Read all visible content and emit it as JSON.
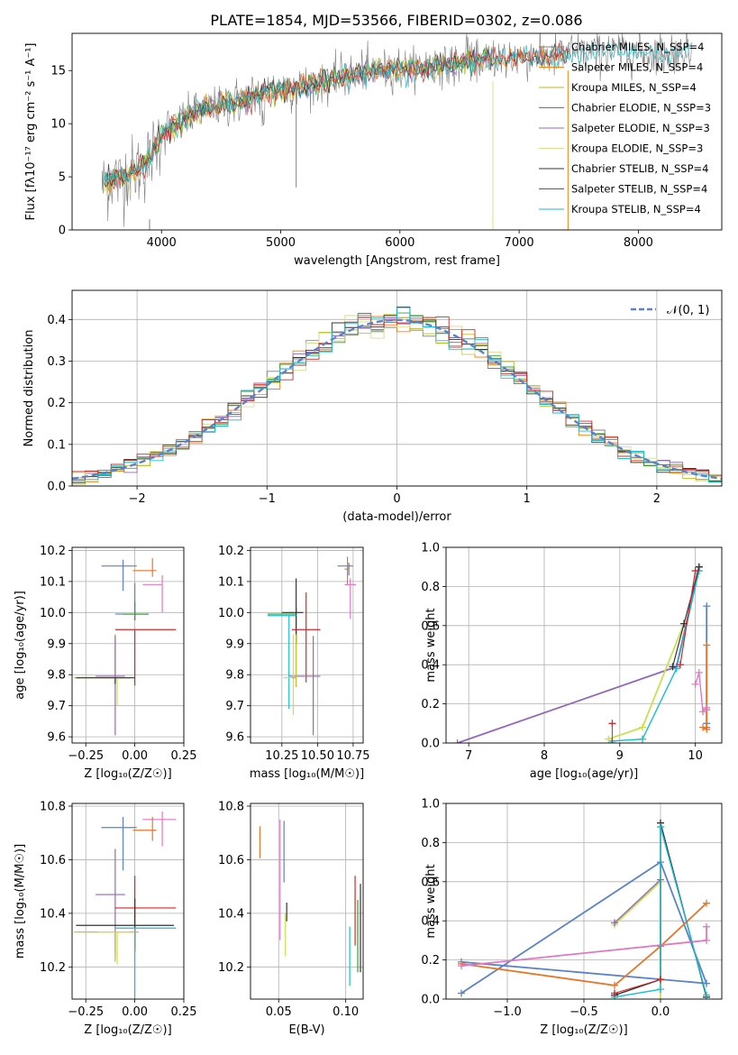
{
  "figure": {
    "title": "PLATE=1854, MJD=53566, FIBERID=0302, z=0.086"
  },
  "colors": {
    "c_miles": "#7f7f7f",
    "s_miles": "#ff7f0e",
    "k_miles": "#bcbd22",
    "c_elodie": "#2ca02c",
    "s_elodie": "#9467bd",
    "k_elodie": "#dbdb8d",
    "c_stelib": "#333333",
    "s_stelib": "#d62728",
    "k_stelib": "#17becf",
    "blue": "#5a82cc",
    "orange": "#e8762a",
    "pink": "#e377c2",
    "olive": "#c9e04f"
  },
  "chart_data": [
    {
      "id": "spectrum",
      "type": "line",
      "title": "PLATE=1854, MJD=53566, FIBERID=0302, z=0.086",
      "xlabel": "wavelength [Angstrom, rest frame]",
      "ylabel": "Flux [fλ10⁻¹⁷ erg cm⁻² s⁻¹ A⁻¹]",
      "xlim": [
        3250,
        8700
      ],
      "ylim": [
        0,
        18.5
      ],
      "xticks": [
        4000,
        5000,
        6000,
        7000,
        8000
      ],
      "yticks": [
        0,
        5,
        10,
        15
      ],
      "grid": false,
      "legend_position": "right",
      "legend": [
        "Chabrier MILES, N_SSP=4",
        "Salpeter MILES, N_SSP=4",
        "Kroupa MILES, N_SSP=4",
        "Chabrier ELODIE, N_SSP=3",
        "Salpeter ELODIE, N_SSP=3",
        "Kroupa ELODIE, N_SSP=3",
        "Chabrier STELIB, N_SSP=4",
        "Salpeter STELIB, N_SSP=4",
        "Kroupa STELIB, N_SSP=4"
      ],
      "continuum": {
        "x": [
          3500,
          3700,
          3900,
          4000,
          4300,
          4600,
          4900,
          5200,
          5500,
          5800,
          6100,
          6400,
          6700,
          7000,
          7400,
          7800,
          8200,
          8500
        ],
        "y": [
          4.5,
          5,
          6.5,
          9,
          11.2,
          12,
          13,
          13.6,
          14.3,
          15.0,
          15.2,
          15.5,
          16,
          16.2,
          16.5,
          16.8,
          16.6,
          17
        ]
      }
    },
    {
      "id": "residuals",
      "type": "step",
      "xlabel": "(data-model)/error",
      "ylabel": "Normed distribution",
      "xlim": [
        -2.5,
        2.5
      ],
      "ylim": [
        0,
        0.47
      ],
      "xticks": [
        -2,
        -1,
        0,
        1,
        2
      ],
      "yticks": [
        0.0,
        0.1,
        0.2,
        0.3,
        0.4
      ],
      "grid": true,
      "legend": [
        "𝒩(0, 1)"
      ],
      "legend_position": "upper right",
      "bin_width": 0.1
    },
    {
      "id": "age_vs_Z",
      "type": "errorbar",
      "xlabel": "Z [log₁₀(Z/Z☉)]",
      "ylabel": "age  [log₁₀(age/yr)]",
      "xlim": [
        -0.32,
        0.25
      ],
      "ylim": [
        9.58,
        10.21
      ],
      "xticks": [
        -0.25,
        0.0,
        0.25
      ],
      "yticks": [
        9.6,
        9.7,
        9.8,
        9.9,
        10.0,
        10.1,
        10.2
      ],
      "grid": true,
      "points": [
        {
          "c": "blue",
          "x": -0.06,
          "xerr": [
            0.11,
            0.07
          ],
          "y": 10.15,
          "yerr": [
            0.08,
            0.02
          ]
        },
        {
          "c": "orange",
          "x": 0.09,
          "xerr": [
            0.1,
            0.02
          ],
          "y": 10.135,
          "yerr": [
            0.02,
            0.04
          ]
        },
        {
          "c": "pink",
          "x": 0.14,
          "xerr": [
            0.1,
            0.0
          ],
          "y": 10.09,
          "yerr": [
            0.09,
            0.03
          ]
        },
        {
          "c": "blue",
          "x": 0.0,
          "xerr": [
            0.1,
            0.07
          ],
          "y": 9.995,
          "yerr": [
            0.02,
            0.1
          ]
        },
        {
          "c": "c_elodie",
          "x": 0.0,
          "xerr": [
            0.06,
            0.07
          ],
          "y": 9.995,
          "yerr": [
            0.02,
            0.04
          ]
        },
        {
          "c": "s_stelib",
          "x": 0.0,
          "xerr": [
            0.1,
            0.21
          ],
          "y": 9.945,
          "yerr": [
            0.18,
            0.0
          ]
        },
        {
          "c": "k_miles",
          "x": -0.1,
          "xerr": [
            0.21,
            0.08
          ],
          "y": 9.79,
          "yerr": [
            0.0,
            0.14
          ]
        },
        {
          "c": "s_elodie",
          "x": -0.1,
          "xerr": [
            0.1,
            0.05
          ],
          "y": 9.795,
          "yerr": [
            0.19,
            0.13
          ]
        },
        {
          "c": "olive",
          "x": -0.09,
          "xerr": [
            0.12,
            0.06
          ],
          "y": 9.79,
          "yerr": [
            0.09,
            0.0
          ]
        },
        {
          "c": "c_stelib",
          "x": -0.1,
          "xerr": [
            0.2,
            0.1
          ],
          "y": 9.79,
          "yerr": [
            0.02,
            0.0
          ]
        }
      ]
    },
    {
      "id": "age_vs_mass",
      "type": "errorbar",
      "xlabel": "mass [log₁₀(M/M☉)]",
      "xlim": [
        10.03,
        10.82
      ],
      "ylim": [
        9.58,
        10.21
      ],
      "xticks": [
        10.25,
        10.5,
        10.75
      ],
      "yticks": [
        9.6,
        9.7,
        9.8,
        9.9,
        10.0,
        10.1,
        10.2
      ],
      "grid": true,
      "points": [
        {
          "c": "blue",
          "x": 10.72,
          "xerr": [
            0.08,
            0.03
          ],
          "y": 10.15,
          "yerr": [
            0.03,
            0.01
          ]
        },
        {
          "c": "orange",
          "x": 10.71,
          "xerr": [
            0.02,
            0.01
          ],
          "y": 10.14,
          "yerr": [
            0.05,
            0.04
          ]
        },
        {
          "c": "pink",
          "x": 10.73,
          "xerr": [
            0.04,
            0.04
          ],
          "y": 10.09,
          "yerr": [
            0.11,
            0.02
          ]
        },
        {
          "c": "c_elodie",
          "x": 10.35,
          "xerr": [
            0.2,
            0.0
          ],
          "y": 9.995,
          "yerr": [
            0.09,
            0.02
          ]
        },
        {
          "c": "c_stelib",
          "x": 10.35,
          "xerr": [
            0.1,
            0.05
          ],
          "y": 10.0,
          "yerr": [
            0.1,
            0.11
          ]
        },
        {
          "c": "k_stelib",
          "x": 10.3,
          "xerr": [
            0.15,
            0.05
          ],
          "y": 9.99,
          "yerr": [
            0.3,
            0.0
          ]
        },
        {
          "c": "s_stelib",
          "x": 10.42,
          "xerr": [
            0.1,
            0.1
          ],
          "y": 9.945,
          "yerr": [
            0.17,
            0.12
          ]
        },
        {
          "c": "s_elodie",
          "x": 10.47,
          "xerr": [
            0.17,
            0.05
          ],
          "y": 9.795,
          "yerr": [
            0.19,
            0.13
          ]
        },
        {
          "c": "olive",
          "x": 10.33,
          "xerr": [
            0.07,
            0.0
          ],
          "y": 9.79,
          "yerr": [
            0.12,
            0.14
          ]
        },
        {
          "c": "k_miles",
          "x": 10.35,
          "xerr": [
            0.03,
            0.0
          ],
          "y": 9.79,
          "yerr": [
            0.03,
            0.14
          ]
        }
      ]
    },
    {
      "id": "weight_vs_age",
      "type": "line",
      "xlabel": "age  [log₁₀(age/yr)]",
      "ylabel": "mass weight",
      "xlim": [
        6.7,
        10.35
      ],
      "ylim": [
        0.0,
        1.0
      ],
      "xticks": [
        7,
        8,
        9,
        10
      ],
      "yticks": [
        0.0,
        0.2,
        0.4,
        0.6,
        0.8,
        1.0
      ],
      "grid": true,
      "series": [
        {
          "c": "s_elodie",
          "x": [
            6.85,
            9.75,
            10.05
          ],
          "y": [
            0.0,
            0.39,
            0.9
          ],
          "lw": 1.8
        },
        {
          "c": "blue",
          "x": [
            10.15,
            10.15,
            10.15
          ],
          "y": [
            0.7,
            0.1,
            0.08
          ],
          "lw": 1.8
        },
        {
          "c": "orange",
          "x": [
            10.15,
            10.15,
            10.15,
            10.1
          ],
          "y": [
            0.5,
            0.17,
            0.07,
            0.08
          ],
          "lw": 1.8
        },
        {
          "c": "pink",
          "x": [
            10.0,
            10.05,
            10.1,
            10.15
          ],
          "y": [
            0.3,
            0.36,
            0.16,
            0.18
          ],
          "lw": 1.4
        },
        {
          "c": "k_stelib",
          "x": [
            8.9,
            9.3,
            9.75,
            10.05
          ],
          "y": [
            0.01,
            0.02,
            0.38,
            0.88
          ],
          "lw": 1.4
        },
        {
          "c": "olive",
          "x": [
            8.85,
            9.3,
            9.85
          ],
          "y": [
            0.02,
            0.08,
            0.61
          ],
          "lw": 1.8
        },
        {
          "c": "c_stelib",
          "x": [
            9.7,
            9.85,
            10.05
          ],
          "y": [
            0.39,
            0.61,
            0.9
          ],
          "lw": 1.2
        },
        {
          "c": "s_stelib",
          "x": [
            9.8,
            10.0
          ],
          "y": [
            0.4,
            0.88
          ],
          "lw": 1.2
        },
        {
          "c": "s_stelib",
          "x": [
            8.9,
            8.9
          ],
          "y": [
            0.1,
            0.0
          ],
          "lw": 1.0
        }
      ]
    },
    {
      "id": "mass_vs_Z",
      "type": "errorbar",
      "xlabel": "Z [log₁₀(Z/Z☉)]",
      "ylabel": "mass [log₁₀(M/M☉)]",
      "xlim": [
        -0.32,
        0.25
      ],
      "ylim": [
        10.08,
        10.81
      ],
      "xticks": [
        -0.25,
        0.0,
        0.25
      ],
      "yticks": [
        10.2,
        10.4,
        10.6,
        10.8
      ],
      "grid": true,
      "points": [
        {
          "c": "pink",
          "x": 0.14,
          "xerr": [
            0.1,
            0.07
          ],
          "y": 10.75,
          "yerr": [
            0.1,
            0.03
          ]
        },
        {
          "c": "blue",
          "x": -0.06,
          "xerr": [
            0.11,
            0.07
          ],
          "y": 10.72,
          "yerr": [
            0.16,
            0.04
          ]
        },
        {
          "c": "orange",
          "x": 0.09,
          "xerr": [
            0.1,
            0.02
          ],
          "y": 10.71,
          "yerr": [
            0.04,
            0.05
          ]
        },
        {
          "c": "s_elodie",
          "x": -0.1,
          "xerr": [
            0.1,
            0.05
          ],
          "y": 10.47,
          "yerr": [
            0.22,
            0.17
          ]
        },
        {
          "c": "s_stelib",
          "x": 0.0,
          "xerr": [
            0.1,
            0.21
          ],
          "y": 10.42,
          "yerr": [
            0.15,
            0.12
          ]
        },
        {
          "c": "c_stelib",
          "x": 0.0,
          "xerr": [
            0.3,
            0.2
          ],
          "y": 10.355,
          "yerr": [
            0.1,
            0.1
          ]
        },
        {
          "c": "k_stelib",
          "x": 0.0,
          "xerr": [
            0.1,
            0.21
          ],
          "y": 10.345,
          "yerr": [
            0.27,
            0.0
          ]
        },
        {
          "c": "k_miles",
          "x": -0.1,
          "xerr": [
            0.21,
            0.12
          ],
          "y": 10.33,
          "yerr": [
            0.11,
            0.0
          ]
        },
        {
          "c": "olive",
          "x": -0.09,
          "xerr": [
            0.1,
            0.06
          ],
          "y": 10.33,
          "yerr": [
            0.12,
            0.0
          ]
        }
      ]
    },
    {
      "id": "mass_vs_EBV",
      "type": "errorbar",
      "xlabel": "E(B-V)",
      "xlim": [
        0.029,
        0.113
      ],
      "ylim": [
        10.08,
        10.81
      ],
      "xticks": [
        0.05,
        0.1
      ],
      "yticks": [
        10.2,
        10.4,
        10.6,
        10.8
      ],
      "grid": true,
      "points": [
        {
          "c": "orange",
          "x": 0.036,
          "yerr": [
            0.06,
            0.06
          ],
          "y": 10.665
        },
        {
          "c": "pink",
          "x": 0.051,
          "yerr": [
            0.3,
            0.15
          ],
          "y": 10.6
        },
        {
          "c": "blue",
          "x": 0.054,
          "yerr": [
            0.19,
            0.04
          ],
          "y": 10.705
        },
        {
          "c": "olive",
          "x": 0.055,
          "yerr": [
            0.11,
            0.05
          ],
          "y": 10.35
        },
        {
          "c": "c_stelib",
          "x": 0.056,
          "yerr": [
            0.0,
            0.07
          ],
          "y": 10.37
        },
        {
          "c": "k_stelib",
          "x": 0.103,
          "yerr": [
            0.22,
            0.0
          ],
          "y": 10.35
        },
        {
          "c": "s_stelib",
          "x": 0.107,
          "yerr": [
            0.14,
            0.12
          ],
          "y": 10.42
        },
        {
          "c": "c_elodie",
          "x": 0.109,
          "yerr": [
            0.17,
            0.1
          ],
          "y": 10.35
        },
        {
          "c": "c_stelib",
          "x": 0.111,
          "yerr": [
            0.17,
            0.16
          ],
          "y": 10.35
        }
      ]
    },
    {
      "id": "weight_vs_Z",
      "type": "line",
      "xlabel": "Z [log₁₀(Z/Z☉)]",
      "ylabel": "mass weight",
      "xlim": [
        -1.4,
        0.4
      ],
      "ylim": [
        0.0,
        1.0
      ],
      "xticks": [
        -1.0,
        -0.5,
        0.0
      ],
      "yticks": [
        0.0,
        0.2,
        0.4,
        0.6,
        0.8,
        1.0
      ],
      "grid": true,
      "series": [
        {
          "c": "blue",
          "x": [
            -1.3,
            0.0,
            0.3,
            -1.3
          ],
          "y": [
            0.03,
            0.7,
            0.08,
            0.19
          ],
          "lw": 1.8
        },
        {
          "c": "orange",
          "x": [
            -1.3,
            -0.3,
            0.0,
            0.3
          ],
          "y": [
            0.18,
            0.07,
            0.27,
            0.49
          ],
          "lw": 1.8
        },
        {
          "c": "pink",
          "x": [
            -1.3,
            0.3,
            0.3
          ],
          "y": [
            0.17,
            0.3,
            0.37
          ],
          "lw": 1.8
        },
        {
          "c": "olive",
          "x": [
            -0.3,
            0.0,
            0.0
          ],
          "y": [
            0.38,
            0.6,
            0.0
          ],
          "lw": 1.8
        },
        {
          "c": "s_elodie",
          "x": [
            -0.3,
            0.0
          ],
          "y": [
            0.39,
            0.61
          ],
          "lw": 1.4
        },
        {
          "c": "c_stelib",
          "x": [
            -0.3,
            0.0,
            0.0,
            0.3
          ],
          "y": [
            0.02,
            0.1,
            0.9,
            0.01
          ],
          "lw": 1.4
        },
        {
          "c": "k_stelib",
          "x": [
            -0.3,
            0.0,
            0.0,
            0.3
          ],
          "y": [
            0.01,
            0.05,
            0.88,
            0.02
          ],
          "lw": 1.4
        },
        {
          "c": "s_stelib",
          "x": [
            -0.3,
            0.0
          ],
          "y": [
            0.03,
            0.1
          ],
          "lw": 1.0
        }
      ]
    }
  ]
}
